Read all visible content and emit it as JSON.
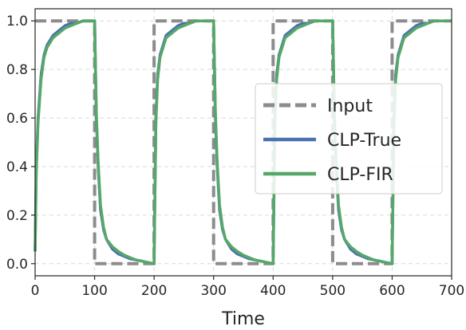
{
  "chart_data": {
    "type": "line",
    "title": "",
    "xlabel": "Time",
    "ylabel": "",
    "xlim": [
      0,
      700
    ],
    "ylim": [
      -0.05,
      1.05
    ],
    "xticks": [
      0,
      100,
      200,
      300,
      400,
      500,
      600,
      700
    ],
    "yticks": [
      0.0,
      0.2,
      0.4,
      0.6,
      0.8,
      1.0
    ],
    "grid": true,
    "legend_position": "center-right",
    "series": [
      {
        "name": "Input",
        "color": "#8c8c8c",
        "style": "dashed",
        "x": [
          0,
          100,
          100,
          200,
          200,
          300,
          300,
          400,
          400,
          500,
          500,
          600,
          600,
          700
        ],
        "y": [
          1.0,
          1.0,
          0.0,
          0.0,
          1.0,
          1.0,
          0.0,
          0.0,
          1.0,
          1.0,
          0.0,
          0.0,
          1.0,
          1.0
        ]
      },
      {
        "name": "CLP-True",
        "color": "#4c72b0",
        "style": "solid",
        "x": [
          0,
          2,
          5,
          10,
          15,
          20,
          30,
          40,
          50,
          60,
          70,
          80,
          90,
          100,
          103,
          106,
          110,
          115,
          120,
          130,
          140,
          150,
          160,
          170,
          180,
          190,
          200,
          203,
          206,
          210,
          215,
          220,
          230,
          240,
          250,
          260,
          270,
          280,
          290,
          300,
          303,
          306,
          310,
          315,
          320,
          330,
          340,
          350,
          360,
          370,
          380,
          390,
          400,
          403,
          406,
          410,
          415,
          420,
          430,
          440,
          450,
          460,
          470,
          480,
          490,
          500,
          503,
          506,
          510,
          515,
          520,
          530,
          540,
          550,
          560,
          570,
          580,
          590,
          600,
          603,
          606,
          610,
          615,
          620,
          630,
          640,
          650,
          660,
          670,
          680,
          690,
          700
        ],
        "y": [
          0.05,
          0.4,
          0.6,
          0.78,
          0.86,
          0.9,
          0.94,
          0.96,
          0.98,
          0.99,
          0.99,
          1.0,
          1.0,
          1.0,
          0.6,
          0.4,
          0.22,
          0.14,
          0.1,
          0.06,
          0.04,
          0.03,
          0.02,
          0.015,
          0.01,
          0.005,
          0.0,
          0.6,
          0.78,
          0.86,
          0.9,
          0.94,
          0.96,
          0.98,
          0.99,
          0.99,
          1.0,
          1.0,
          1.0,
          1.0,
          0.6,
          0.4,
          0.22,
          0.14,
          0.1,
          0.06,
          0.04,
          0.03,
          0.02,
          0.015,
          0.01,
          0.005,
          0.0,
          0.6,
          0.78,
          0.86,
          0.9,
          0.94,
          0.96,
          0.98,
          0.99,
          0.99,
          1.0,
          1.0,
          1.0,
          1.0,
          0.6,
          0.4,
          0.22,
          0.14,
          0.1,
          0.06,
          0.04,
          0.03,
          0.02,
          0.015,
          0.01,
          0.005,
          0.0,
          0.6,
          0.78,
          0.86,
          0.9,
          0.94,
          0.96,
          0.98,
          0.99,
          0.99,
          1.0,
          1.0,
          1.0,
          1.0
        ]
      },
      {
        "name": "CLP-FIR",
        "color": "#55a868",
        "style": "solid",
        "x": [
          0,
          2,
          5,
          10,
          15,
          20,
          30,
          40,
          50,
          60,
          70,
          80,
          90,
          100,
          103,
          106,
          110,
          115,
          120,
          130,
          140,
          150,
          160,
          170,
          180,
          190,
          200,
          203,
          206,
          210,
          215,
          220,
          230,
          240,
          250,
          260,
          270,
          280,
          290,
          300,
          303,
          306,
          310,
          315,
          320,
          330,
          340,
          350,
          360,
          370,
          380,
          390,
          400,
          403,
          406,
          410,
          415,
          420,
          430,
          440,
          450,
          460,
          470,
          480,
          490,
          500,
          503,
          506,
          510,
          515,
          520,
          530,
          540,
          550,
          560,
          570,
          580,
          590,
          600,
          603,
          606,
          610,
          615,
          620,
          630,
          640,
          650,
          660,
          670,
          680,
          690,
          700
        ],
        "y": [
          0.05,
          0.38,
          0.58,
          0.76,
          0.85,
          0.89,
          0.93,
          0.95,
          0.97,
          0.98,
          0.99,
          1.0,
          1.0,
          1.0,
          0.62,
          0.42,
          0.24,
          0.15,
          0.1,
          0.07,
          0.05,
          0.035,
          0.025,
          0.015,
          0.01,
          0.005,
          0.0,
          0.58,
          0.76,
          0.85,
          0.89,
          0.93,
          0.95,
          0.97,
          0.98,
          0.99,
          1.0,
          1.0,
          1.0,
          1.0,
          0.62,
          0.42,
          0.24,
          0.15,
          0.1,
          0.07,
          0.05,
          0.035,
          0.025,
          0.015,
          0.01,
          0.005,
          0.0,
          0.58,
          0.76,
          0.85,
          0.89,
          0.93,
          0.95,
          0.97,
          0.98,
          0.99,
          1.0,
          1.0,
          1.0,
          1.0,
          0.62,
          0.42,
          0.24,
          0.15,
          0.1,
          0.07,
          0.05,
          0.035,
          0.025,
          0.015,
          0.01,
          0.005,
          0.0,
          0.58,
          0.76,
          0.85,
          0.89,
          0.93,
          0.95,
          0.97,
          0.98,
          0.99,
          1.0,
          1.0,
          1.0,
          1.0
        ]
      }
    ]
  }
}
